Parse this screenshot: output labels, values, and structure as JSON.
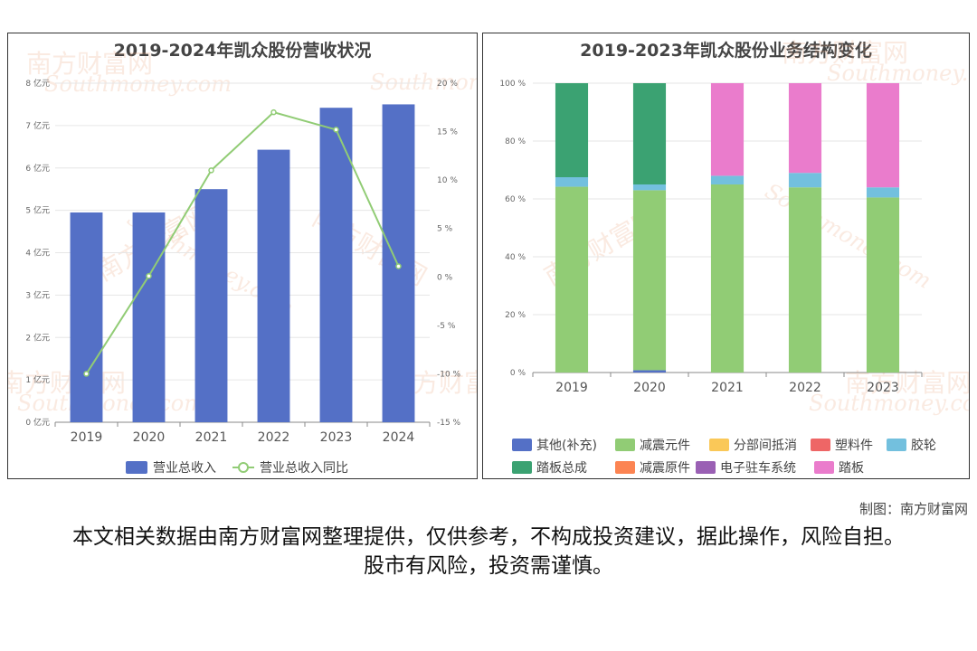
{
  "watermark": {
    "text": "南方财富网",
    "sub": "Southmoney.com"
  },
  "credit": "制图：南方财富网",
  "disclaimer": "本文相关数据由南方财富网整理提供，仅供参考，不构成投资建议，据此操作，风险自担。股市有风险，投资需谨慎。",
  "chart_data": [
    {
      "type": "bar",
      "title": "2019-2024年凯众股份营收状况",
      "categories": [
        "2019",
        "2020",
        "2021",
        "2022",
        "2023",
        "2024"
      ],
      "y_left": {
        "ticks": [
          "0 亿元",
          "1 亿元",
          "2 亿元",
          "3 亿元",
          "4 亿元",
          "5 亿元",
          "6 亿元",
          "7 亿元",
          "8 亿元"
        ],
        "range": [
          0,
          8
        ]
      },
      "y_right": {
        "ticks": [
          "-15 %",
          "-10 %",
          "-5 %",
          "0 %",
          "5 %",
          "10 %",
          "15 %",
          "20 %"
        ],
        "range": [
          -15,
          20
        ]
      },
      "series": [
        {
          "name": "营业总收入",
          "type": "bar",
          "axis": "left",
          "color": "#5470c6",
          "values": [
            4.95,
            4.95,
            5.5,
            6.43,
            7.42,
            7.5
          ]
        },
        {
          "name": "营业总收入同比",
          "type": "line",
          "axis": "right",
          "color": "#91cc75",
          "values": [
            -10,
            0.1,
            11,
            17,
            15.2,
            1.1
          ]
        }
      ],
      "legend_position": "bottom",
      "grid": true
    },
    {
      "type": "bar",
      "stacked": true,
      "title": "2019-2023年凯众股份业务结构变化",
      "categories": [
        "2019",
        "2020",
        "2021",
        "2022",
        "2023"
      ],
      "y": {
        "ticks": [
          "0 %",
          "20 %",
          "40 %",
          "60 %",
          "80 %",
          "100 %"
        ],
        "range": [
          0,
          100
        ]
      },
      "series": [
        {
          "name": "其他(补充)",
          "color": "#5470c6",
          "values": [
            0,
            0.8,
            0,
            0,
            0
          ]
        },
        {
          "name": "减震元件",
          "color": "#91cc75",
          "values": [
            64.2,
            62.2,
            65,
            64,
            60.5
          ]
        },
        {
          "name": "分部间抵消",
          "color": "#fac858",
          "values": [
            0,
            0,
            0,
            0,
            0
          ]
        },
        {
          "name": "塑料件",
          "color": "#ee6666",
          "values": [
            0,
            0,
            0,
            0,
            0
          ]
        },
        {
          "name": "胶轮",
          "color": "#73c0de",
          "values": [
            3.3,
            2,
            3,
            5,
            3.5
          ]
        },
        {
          "name": "踏板总成",
          "color": "#3ba272",
          "values": [
            32.5,
            35,
            0,
            0,
            0
          ]
        },
        {
          "name": "减震原件",
          "color": "#fc8452",
          "values": [
            0,
            0,
            0,
            0,
            0
          ]
        },
        {
          "name": "电子驻车系统",
          "color": "#9a60b4",
          "values": [
            0,
            0,
            0,
            0,
            0
          ]
        },
        {
          "name": "踏板",
          "color": "#ea7ccc",
          "values": [
            0,
            0,
            32,
            31,
            36
          ]
        }
      ],
      "legend_position": "bottom",
      "grid": true
    }
  ]
}
